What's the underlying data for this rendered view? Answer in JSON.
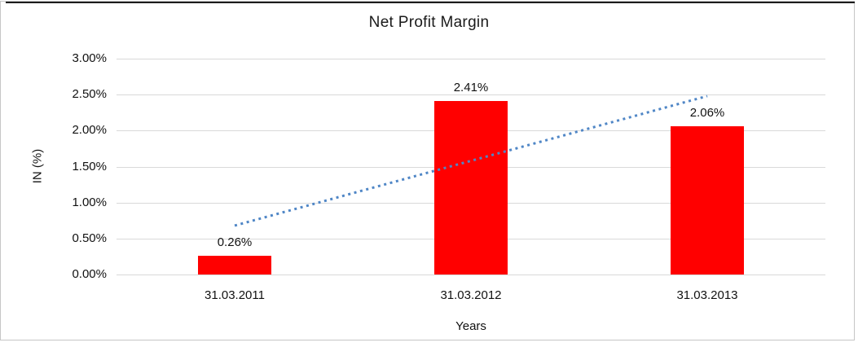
{
  "chart_data": {
    "type": "bar",
    "title": "Net Profit Margin",
    "xlabel": "Years",
    "ylabel": "IN (%)",
    "categories": [
      "31.03.2011",
      "31.03.2012",
      "31.03.2013"
    ],
    "values": [
      0.26,
      2.41,
      2.06
    ],
    "data_labels": [
      "0.26%",
      "2.41%",
      "2.06%"
    ],
    "ylim": [
      0,
      3
    ],
    "ytick_step": 0.5,
    "ytick_labels": [
      "0.00%",
      "0.50%",
      "1.00%",
      "1.50%",
      "2.00%",
      "2.50%",
      "3.00%"
    ],
    "grid": true,
    "legend": "none",
    "colors": {
      "bar": "#ff0000",
      "gridline": "#d9d9d9",
      "axis_text": "#111111",
      "trendline": "#4f86c6",
      "frame_border": "#c6c6c6",
      "frame_top_edge": "#1c1c1c"
    },
    "trendline": {
      "type": "linear",
      "style": "dotted",
      "start_value": 0.68,
      "end_value": 2.48
    }
  }
}
